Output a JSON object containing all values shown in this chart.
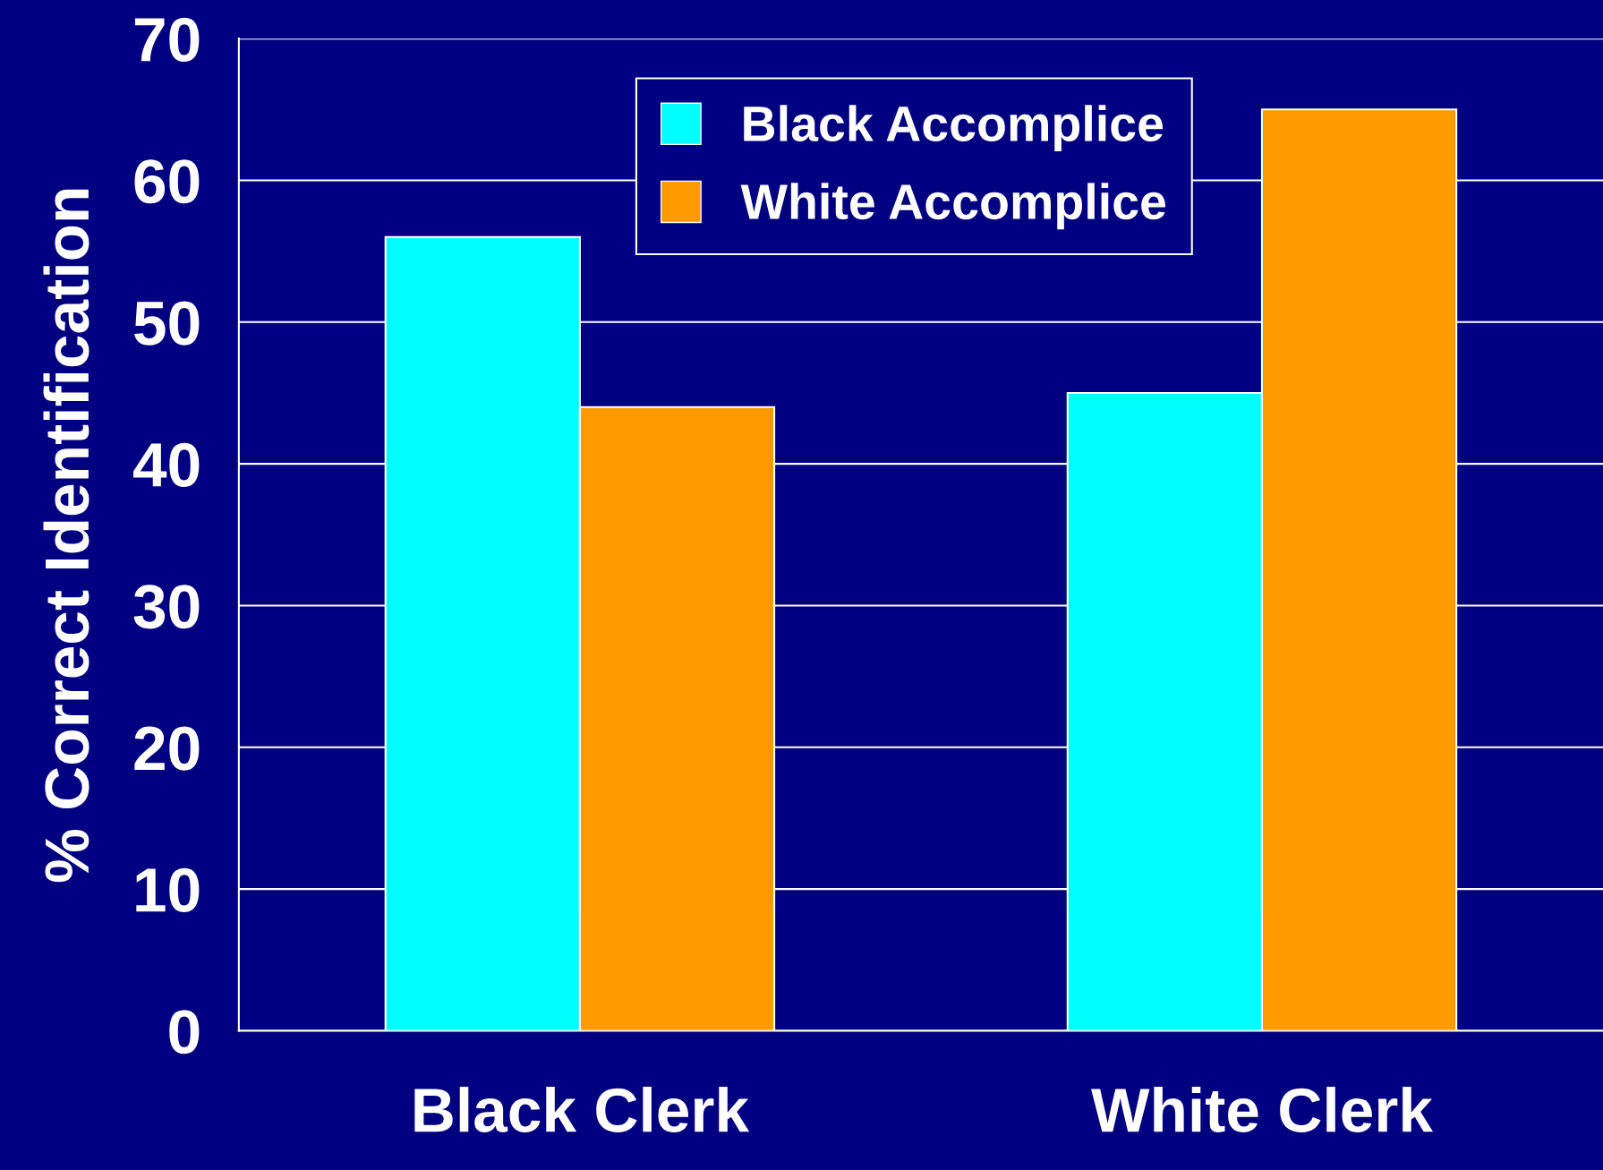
{
  "chart_data": {
    "type": "bar",
    "ylabel": "% Correct Identification",
    "categories": [
      "Black Clerk",
      "White Clerk"
    ],
    "series": [
      {
        "name": "Black Accomplice",
        "color": "#00ffff",
        "values": [
          56,
          45
        ]
      },
      {
        "name": "White Accomplice",
        "color": "#ff9900",
        "values": [
          44,
          65
        ]
      }
    ],
    "ylim": [
      0,
      70
    ],
    "yticks": [
      0,
      10,
      20,
      30,
      40,
      50,
      60,
      70
    ],
    "grid": "y",
    "legend": "top"
  }
}
